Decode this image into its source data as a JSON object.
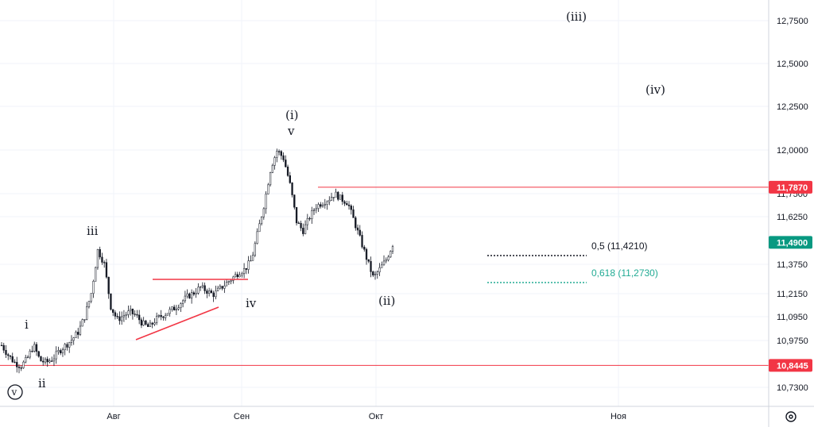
{
  "chart_data": {
    "type": "candlestick",
    "y_axis": {
      "ticks": [
        "12,7500",
        "12,5000",
        "12,2500",
        "12,0000",
        "11,7500",
        "11,6250",
        "11,3750",
        "11,2150",
        "11,0950",
        "10,9750",
        "10,7300"
      ],
      "position": "right"
    },
    "x_axis": {
      "ticks": [
        "Авг",
        "Сен",
        "Окт",
        "Ноя"
      ]
    },
    "price_badges": [
      {
        "label": "11,7870",
        "color": "#f23645"
      },
      {
        "label": "11,4900",
        "color": "#089981"
      },
      {
        "label": "10,8445",
        "color": "#f23645"
      }
    ],
    "horizontal_levels": [
      {
        "value": 11.787,
        "color": "#f23645"
      },
      {
        "value": 10.8445,
        "color": "#f23645"
      }
    ],
    "fib_levels": [
      {
        "label": "0,5 (11,4210)",
        "value": 11.421,
        "color": "#131722"
      },
      {
        "label": "0,618 (11,2730)",
        "value": 11.273,
        "color": "#22ab94"
      }
    ],
    "wave_labels": [
      "i",
      "ii",
      "iii",
      "iv",
      "v",
      "(i)",
      "(ii)",
      "(iii)",
      "(iv)",
      "v"
    ],
    "price_series": [
      10.95,
      10.9,
      10.86,
      10.84,
      10.88,
      10.95,
      10.87,
      10.86,
      10.88,
      10.92,
      10.95,
      10.98,
      11.02,
      11.1,
      11.22,
      11.45,
      11.38,
      11.15,
      11.08,
      11.1,
      11.12,
      11.1,
      11.06,
      11.04,
      11.08,
      11.1,
      11.12,
      11.14,
      11.17,
      11.2,
      11.22,
      11.25,
      11.23,
      11.21,
      11.24,
      11.27,
      11.3,
      11.33,
      11.35,
      11.4,
      11.55,
      11.7,
      11.9,
      12.0,
      11.95,
      11.8,
      11.6,
      11.55,
      11.62,
      11.68,
      11.7,
      11.72,
      11.75,
      11.72,
      11.7,
      11.6,
      11.5,
      11.4,
      11.3,
      11.35,
      11.4,
      11.48
    ]
  }
}
